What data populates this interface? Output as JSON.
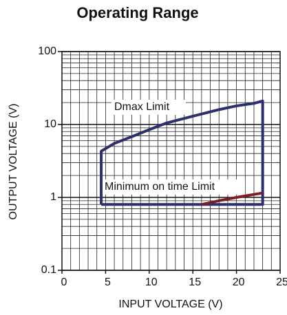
{
  "chart_data": {
    "type": "line",
    "title": "Operating Range",
    "xlabel": "INPUT VOLTAGE (V)",
    "ylabel": "OUTPUT VOLTAGE (V)",
    "xlim": [
      0,
      25
    ],
    "xticks": [
      0,
      5,
      10,
      15,
      20,
      25
    ],
    "ylim": [
      0.1,
      100
    ],
    "yticks": [
      0.1,
      1,
      10,
      100
    ],
    "ylog": true,
    "grid": true,
    "annotations": [
      "Dmax Limit",
      "Minimum on time Limit"
    ],
    "series": [
      {
        "color": "#2e2f6e",
        "x": [
          4.5,
          4.5,
          6,
          8,
          10,
          12,
          15,
          18,
          20,
          22,
          23,
          23,
          4.5
        ],
        "values": [
          0.8,
          4.3,
          5.5,
          6.8,
          8.5,
          10.5,
          13,
          16,
          18,
          19.5,
          21,
          0.8,
          0.8
        ]
      },
      {
        "color": "#7a1f22",
        "x": [
          16,
          18,
          20,
          23
        ],
        "values": [
          0.8,
          0.9,
          1.0,
          1.15
        ]
      }
    ]
  }
}
